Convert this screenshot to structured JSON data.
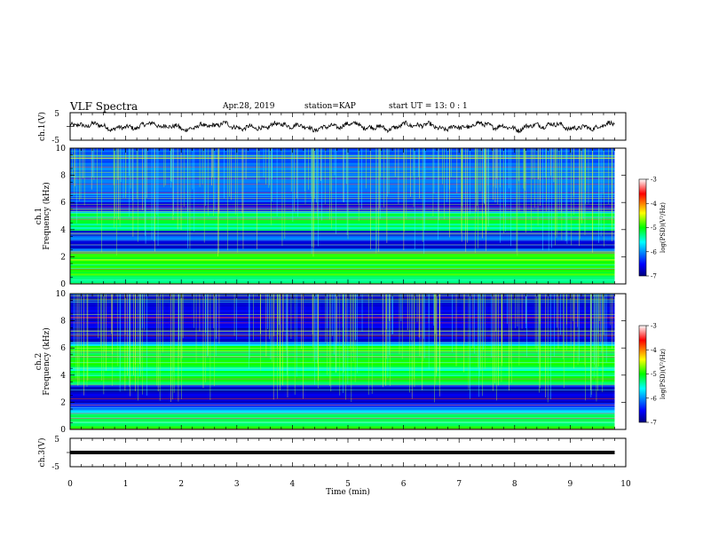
{
  "header": {
    "title": "VLF Spectra",
    "date": "Apr.28, 2019",
    "station": "station=KAP",
    "start": "start UT =  13: 0  : 1"
  },
  "chart_data": [
    {
      "type": "line",
      "panel": "ch1-waveform",
      "ylabel": "ch.1(V)",
      "ylim": [
        -5,
        5
      ],
      "y_ticks": [
        "5",
        "-5"
      ],
      "x_range": [
        0,
        10
      ],
      "data_end": 9.8,
      "approx_level_range": [
        -1.5,
        1.5
      ]
    },
    {
      "type": "heatmap",
      "panel": "ch1-spectrogram",
      "ylabel": "ch.1\nFrequency (kHz)",
      "ylim": [
        0,
        10
      ],
      "y_ticks": [
        "0",
        "2",
        "4",
        "6",
        "8",
        "10"
      ],
      "x_range": [
        0,
        10
      ],
      "data_end": 9.8,
      "colorbar": {
        "label": "log(PSD)(V²/Hz)",
        "range": [
          -7,
          -3
        ],
        "ticks": [
          "-3",
          "-4",
          "-5",
          "-6",
          "-7"
        ]
      },
      "dark_bands_khz": [
        [
          2.6,
          3.3
        ],
        [
          3.6,
          3.9
        ],
        [
          5.4,
          6.0
        ]
      ],
      "bright_bands_khz": [
        [
          0.7,
          2.3
        ],
        [
          3.9,
          5.3
        ]
      ]
    },
    {
      "type": "heatmap",
      "panel": "ch2-spectrogram",
      "ylabel": "ch.2\nFrequency (kHz)",
      "ylim": [
        0,
        10
      ],
      "y_ticks": [
        "0",
        "2",
        "4",
        "6",
        "8",
        "10"
      ],
      "x_range": [
        0,
        10
      ],
      "data_end": 9.8,
      "colorbar": {
        "label": "log(PSD)(V²/Hz)",
        "range": [
          -7,
          -3
        ],
        "ticks": [
          "-3",
          "-4",
          "-5",
          "-6",
          "-7"
        ]
      },
      "dark_bands_khz": [
        [
          2.0,
          3.2
        ],
        [
          6.4,
          10.0
        ]
      ],
      "bright_bands_khz": [
        [
          3.4,
          4.4
        ],
        [
          4.6,
          6.2
        ],
        [
          0.3,
          1.2
        ]
      ]
    },
    {
      "type": "line",
      "panel": "ch3-waveform",
      "ylabel": "ch.3(V)",
      "ylim": [
        -5,
        5
      ],
      "y_ticks": [
        "5",
        "-5"
      ],
      "x_range": [
        0,
        10
      ],
      "data_end": 9.8,
      "approx_level": 0
    }
  ],
  "x_axis": {
    "label": "Time (min)",
    "ticks": [
      "0",
      "1",
      "2",
      "3",
      "4",
      "5",
      "6",
      "7",
      "8",
      "9",
      "10"
    ]
  }
}
